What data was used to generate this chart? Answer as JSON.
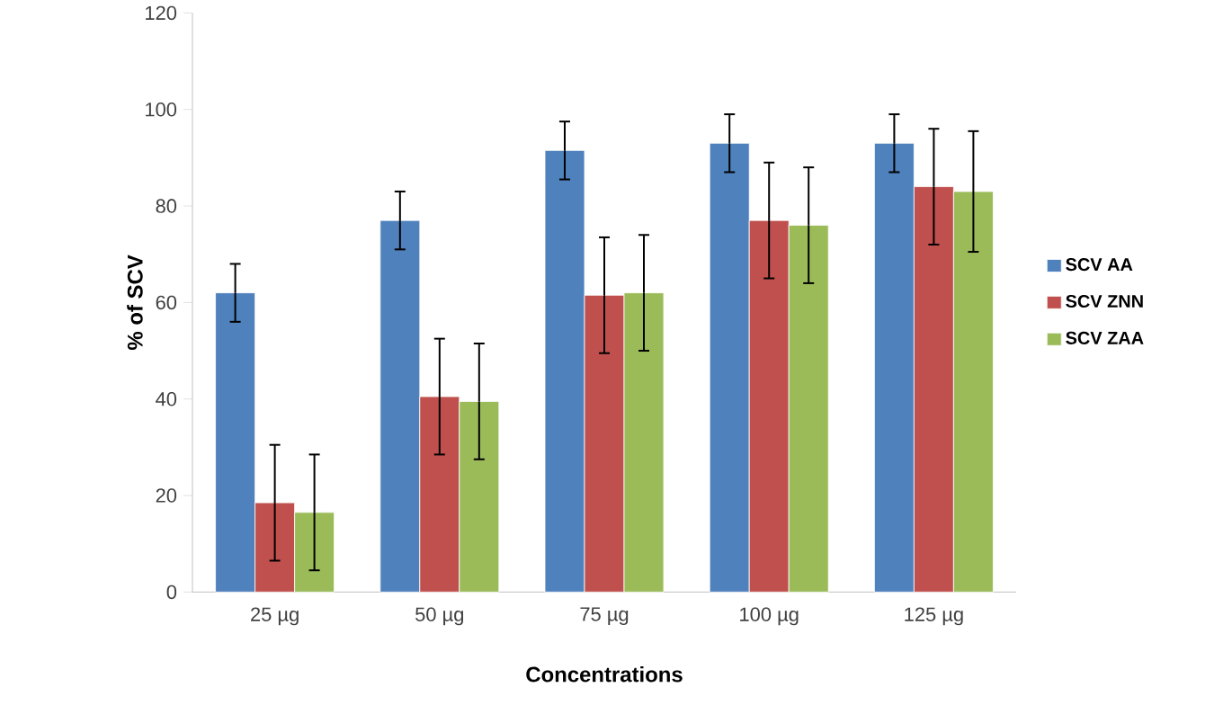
{
  "chart_data": {
    "type": "bar",
    "xlabel": "Concentrations",
    "ylabel": "% of SCV",
    "categories": [
      "25 µg",
      "50 µg",
      "75 µg",
      "100 µg",
      "125 µg"
    ],
    "series": [
      {
        "name": "SCV AA",
        "color": "#4f81bd",
        "values": [
          62,
          77,
          91.5,
          93,
          93
        ],
        "errors": [
          6,
          6,
          6,
          6,
          6
        ]
      },
      {
        "name": "SCV ZNN",
        "color": "#c0504d",
        "values": [
          18.5,
          40.5,
          61.5,
          77,
          84
        ],
        "errors": [
          12,
          12,
          12,
          12,
          12
        ]
      },
      {
        "name": "SCV ZAA",
        "color": "#9bbb59",
        "values": [
          16.5,
          39.5,
          62,
          76,
          83
        ],
        "errors": [
          12,
          12,
          12,
          12,
          12.5
        ]
      }
    ],
    "ylim": [
      0,
      120
    ],
    "yticks": [
      0,
      20,
      40,
      60,
      80,
      100,
      120
    ],
    "grid": false,
    "legend": "right"
  }
}
